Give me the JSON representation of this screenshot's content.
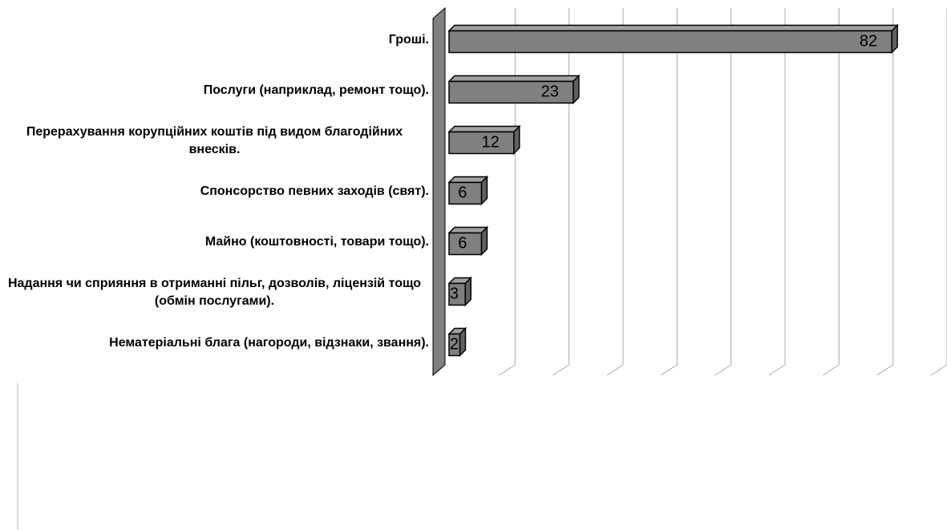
{
  "chart_data": {
    "type": "bar3d",
    "categories": [
      "Гроші.",
      "Послуги (наприклад, ремонт тощо).",
      "Перерахування корупційних коштів під видом благодійних внесків.",
      "Спонсорство певних заходів (свят).",
      "Майно (коштовності, товари тощо).",
      "Надання чи сприяння в отриманні пільг, дозволів, ліцензій тощо (обмін послугами).",
      "Нематеріальні блага (нагороди, відзнаки, звання)."
    ],
    "values": [
      82,
      23,
      12,
      6,
      6,
      3,
      2
    ],
    "color": "#808080",
    "wall_color": "#808080",
    "xlim": [
      0,
      90
    ],
    "xticks": [
      0,
      10,
      20,
      30,
      40,
      50,
      60,
      70,
      80,
      90
    ],
    "tick_labels": false,
    "grid": true
  }
}
